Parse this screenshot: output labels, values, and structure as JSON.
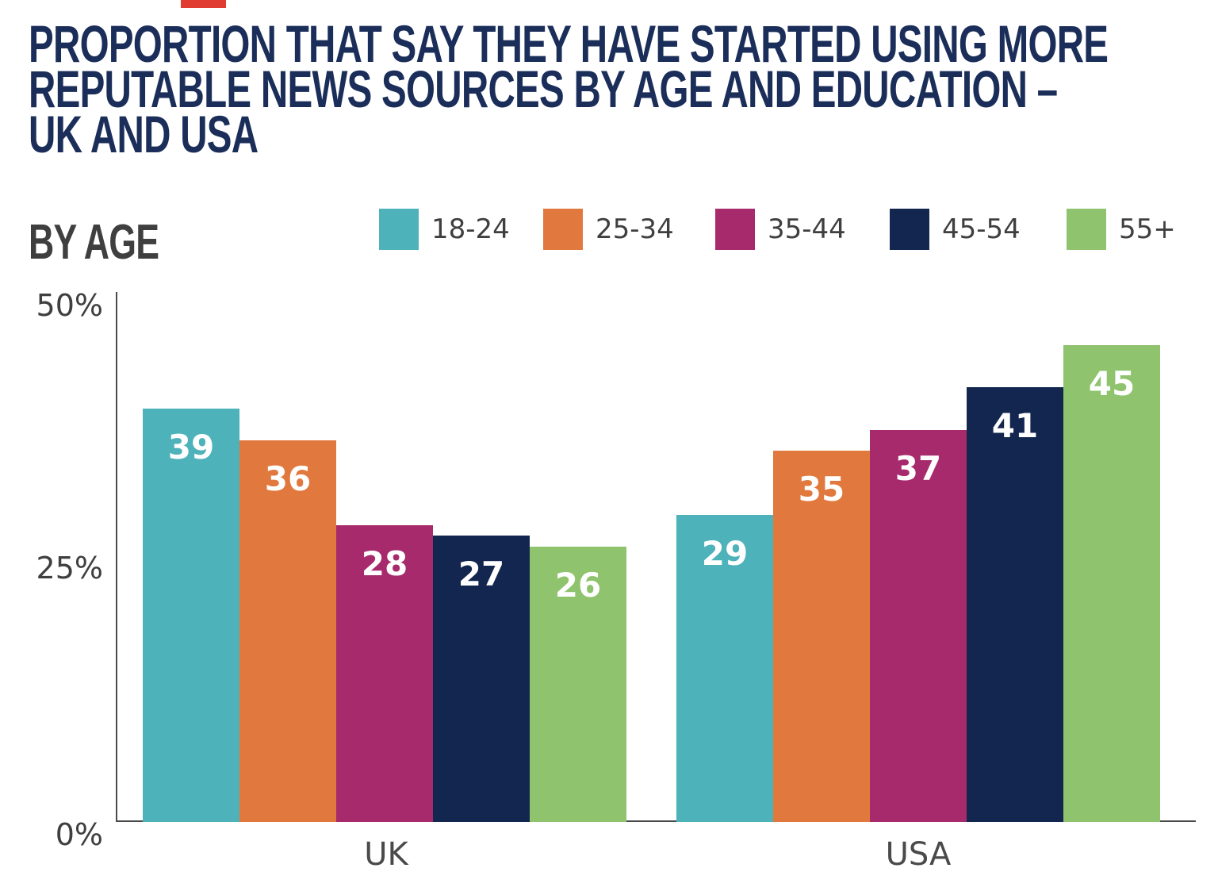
{
  "page": {
    "title_lines": [
      "PROPORTION THAT SAY THEY HAVE STARTED USING MORE",
      "REPUTABLE NEWS SOURCES BY AGE AND EDUCATION –",
      "UK AND USA"
    ],
    "section_label": "BY AGE"
  },
  "colors": {
    "title_navy": "#1B2E5A",
    "text_gray": "#3F3F3F",
    "axis_gray": "#4A4A4A",
    "accent_red": "#E03C31",
    "bar_label_white": "#FFFFFF"
  },
  "chart_data": {
    "type": "bar",
    "title": "PROPORTION THAT SAY THEY HAVE STARTED USING MORE REPUTABLE NEWS SOURCES BY AGE AND EDUCATION – UK AND USA",
    "section": "BY AGE",
    "categories": [
      "UK",
      "USA"
    ],
    "series": [
      {
        "name": "18-24",
        "color": "#4DB2BA",
        "values": [
          39,
          29
        ]
      },
      {
        "name": "25-34",
        "color": "#E1793E",
        "values": [
          36,
          35
        ]
      },
      {
        "name": "35-44",
        "color": "#A72A6C",
        "values": [
          28,
          37
        ]
      },
      {
        "name": "45-54",
        "color": "#13264F",
        "values": [
          27,
          41
        ]
      },
      {
        "name": "55+",
        "color": "#8FC36E",
        "values": [
          26,
          45
        ]
      }
    ],
    "xlabel": "",
    "ylabel": "",
    "ylim": [
      0,
      50
    ],
    "ytick_labels": [
      "50%",
      "25%",
      "0%"
    ],
    "value_labels_shown": true,
    "grid": false,
    "legend_position": "top"
  }
}
